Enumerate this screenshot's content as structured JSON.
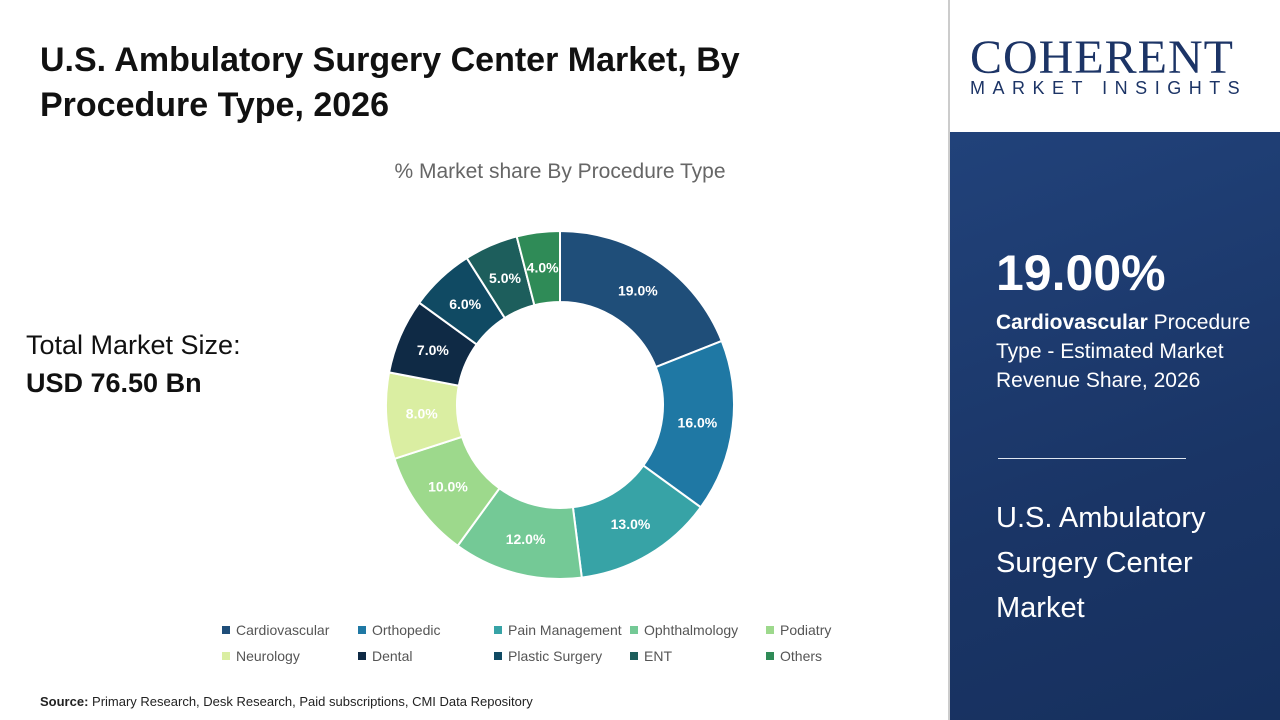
{
  "title": "U.S. Ambulatory Surgery Center Market, By Procedure Type, 2026",
  "total": {
    "label": "Total Market Size:",
    "value": "USD 76.50 Bn"
  },
  "source": {
    "label": "Source:",
    "text": " Primary Research, Desk Research, Paid subscriptions, CMI Data Repository"
  },
  "logo": {
    "big": "COHERENT",
    "small": "MARKET INSIGHTS"
  },
  "panel": {
    "pct": "19.00%",
    "highlight": "Cardiovascular",
    "desc": " Procedure Type - Estimated Market Revenue Share, 2026",
    "market": "U.S. Ambulatory Surgery Center Market"
  },
  "chart_data": {
    "type": "pie",
    "donut": true,
    "title": "% Market share By Procedure Type",
    "categories": [
      "Cardiovascular",
      "Orthopedic",
      "Pain Management",
      "Ophthalmology",
      "Podiatry",
      "Neurology",
      "Dental",
      "Plastic Surgery",
      "ENT",
      "Others"
    ],
    "values": [
      19.0,
      16.0,
      13.0,
      12.0,
      10.0,
      8.0,
      7.0,
      6.0,
      5.0,
      4.0
    ],
    "labels": [
      "19.0%",
      "16.0%",
      "13.0%",
      "12.0%",
      "10.0%",
      "8.0%",
      "7.0%",
      "6.0%",
      "5.0%",
      "4.0%"
    ],
    "colors": [
      "#1f4e79",
      "#1f78a4",
      "#37a3a6",
      "#74c996",
      "#9dd98c",
      "#daeea2",
      "#0f2a45",
      "#104a63",
      "#1d5e5c",
      "#2f8b57"
    ],
    "legend": "bottom"
  }
}
